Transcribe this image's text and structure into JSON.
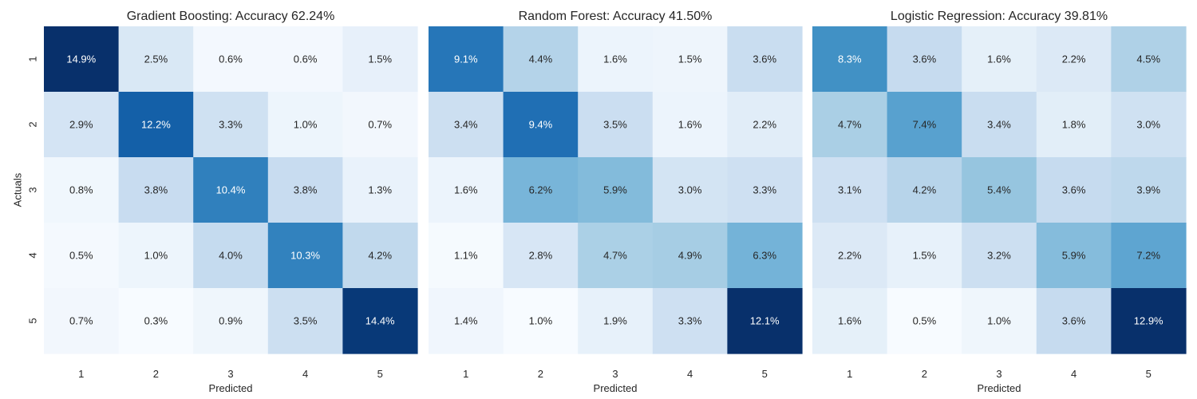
{
  "chart_data": [
    {
      "type": "heatmap",
      "title": "Gradient Boosting: Accuracy 62.24%",
      "xlabel": "Predicted",
      "ylabel": "Actuals",
      "x_categories": [
        "1",
        "2",
        "3",
        "4",
        "5"
      ],
      "y_categories": [
        "1",
        "2",
        "3",
        "4",
        "5"
      ],
      "values": [
        [
          14.9,
          2.5,
          0.6,
          0.6,
          1.5
        ],
        [
          2.9,
          12.2,
          3.3,
          1.0,
          0.7
        ],
        [
          0.8,
          3.8,
          10.4,
          3.8,
          1.3
        ],
        [
          0.5,
          1.0,
          4.0,
          10.3,
          4.2
        ],
        [
          0.7,
          0.3,
          0.9,
          3.5,
          14.4
        ]
      ],
      "value_format": "percent",
      "colormap": "Blues",
      "colorbar": false
    },
    {
      "type": "heatmap",
      "title": "Random Forest: Accuracy 41.50%",
      "xlabel": "Predicted",
      "ylabel": "",
      "x_categories": [
        "1",
        "2",
        "3",
        "4",
        "5"
      ],
      "y_categories": [
        "1",
        "2",
        "3",
        "4",
        "5"
      ],
      "values": [
        [
          9.1,
          4.4,
          1.6,
          1.5,
          3.6
        ],
        [
          3.4,
          9.4,
          3.5,
          1.6,
          2.2
        ],
        [
          1.6,
          6.2,
          5.9,
          3.0,
          3.3
        ],
        [
          1.1,
          2.8,
          4.7,
          4.9,
          6.3
        ],
        [
          1.4,
          1.0,
          1.9,
          3.3,
          12.1
        ]
      ],
      "value_format": "percent",
      "colormap": "Blues",
      "colorbar": false
    },
    {
      "type": "heatmap",
      "title": "Logistic Regression: Accuracy 39.81%",
      "xlabel": "Predicted",
      "ylabel": "",
      "x_categories": [
        "1",
        "2",
        "3",
        "4",
        "5"
      ],
      "y_categories": [
        "1",
        "2",
        "3",
        "4",
        "5"
      ],
      "values": [
        [
          8.3,
          3.6,
          1.6,
          2.2,
          4.5
        ],
        [
          4.7,
          7.4,
          3.4,
          1.8,
          3.0
        ],
        [
          3.1,
          4.2,
          5.4,
          3.6,
          3.9
        ],
        [
          2.2,
          1.5,
          3.2,
          5.9,
          7.2
        ],
        [
          1.6,
          0.5,
          1.0,
          3.6,
          12.9
        ]
      ],
      "value_format": "percent",
      "colormap": "Blues",
      "colorbar": false
    }
  ]
}
